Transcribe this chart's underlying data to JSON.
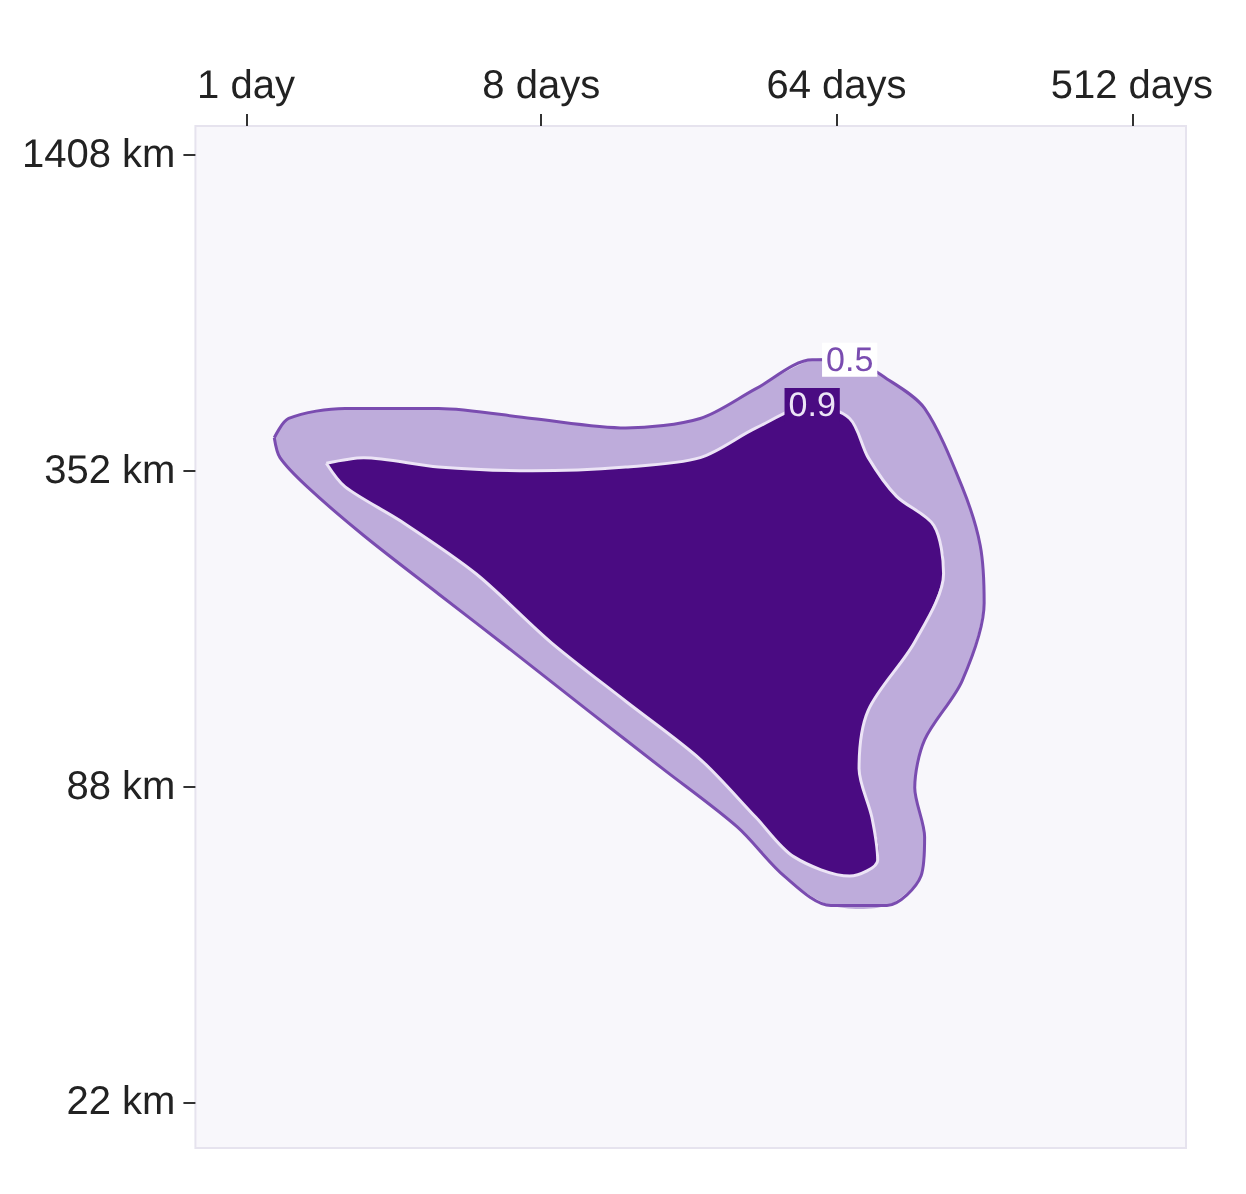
{
  "chart_data": {
    "type": "area",
    "xlim": [
      0.7,
      750
    ],
    "ylim": [
      18,
      1600
    ],
    "log": "xy",
    "xticks": [
      {
        "value": 1,
        "label": "1 day"
      },
      {
        "value": 8,
        "label": "8 days"
      },
      {
        "value": 64,
        "label": "64 days"
      },
      {
        "value": 512,
        "label": "512 days"
      }
    ],
    "yticks": [
      {
        "value": 22,
        "label": "22 km"
      },
      {
        "value": 88,
        "label": "88 km"
      },
      {
        "value": 352,
        "label": "352 km"
      },
      {
        "value": 1408,
        "label": "1408 km"
      }
    ],
    "grid": false,
    "legend": false,
    "marker": "none",
    "line_style": "solid",
    "series": [
      {
        "name": "0.5",
        "color": "#7a4cb0",
        "x": [
          1.22,
          1.27,
          1.54,
          2.29,
          3.88,
          6.57,
          11.1,
          18.8,
          31.8,
          44.3,
          61.5,
          91.3,
          116,
          119,
          111,
          119,
          155,
          181,
          176,
          155,
          119,
          91.3,
          70.2,
          53.9,
          36.3,
          24.5,
          14.5,
          7.49,
          3.88,
          2.01,
          1.35,
          1.22
        ],
        "values": [
          407,
          373,
          328,
          265,
          205,
          159,
          123,
          95.2,
          73.7,
          59.4,
          52.2,
          52.2,
          59.4,
          70.5,
          87.5,
          108,
          140,
          197,
          254,
          328,
          463,
          527,
          573,
          573,
          505,
          443,
          425,
          443,
          463,
          463,
          443,
          407
        ]
      },
      {
        "name": "0.9",
        "color": "#ece4f6",
        "x": [
          1.76,
          2.01,
          2.98,
          5.05,
          8.54,
          14.5,
          24.5,
          36.3,
          47.3,
          70.2,
          85.5,
          82.1,
          75.0,
          80.0,
          111,
          136,
          127,
          97.5,
          80.0,
          70.2,
          53.9,
          36.3,
          24.5,
          14.5,
          7.49,
          3.88,
          2.29,
          1.76
        ],
        "values": [
          364,
          328,
          282,
          224,
          166,
          128,
          99.2,
          76.8,
          64.7,
          59.4,
          63.7,
          76.8,
          95.2,
          123,
          166,
          224,
          277,
          315,
          373,
          443,
          470,
          425,
          373,
          358,
          352,
          358,
          373,
          364
        ]
      }
    ]
  }
}
